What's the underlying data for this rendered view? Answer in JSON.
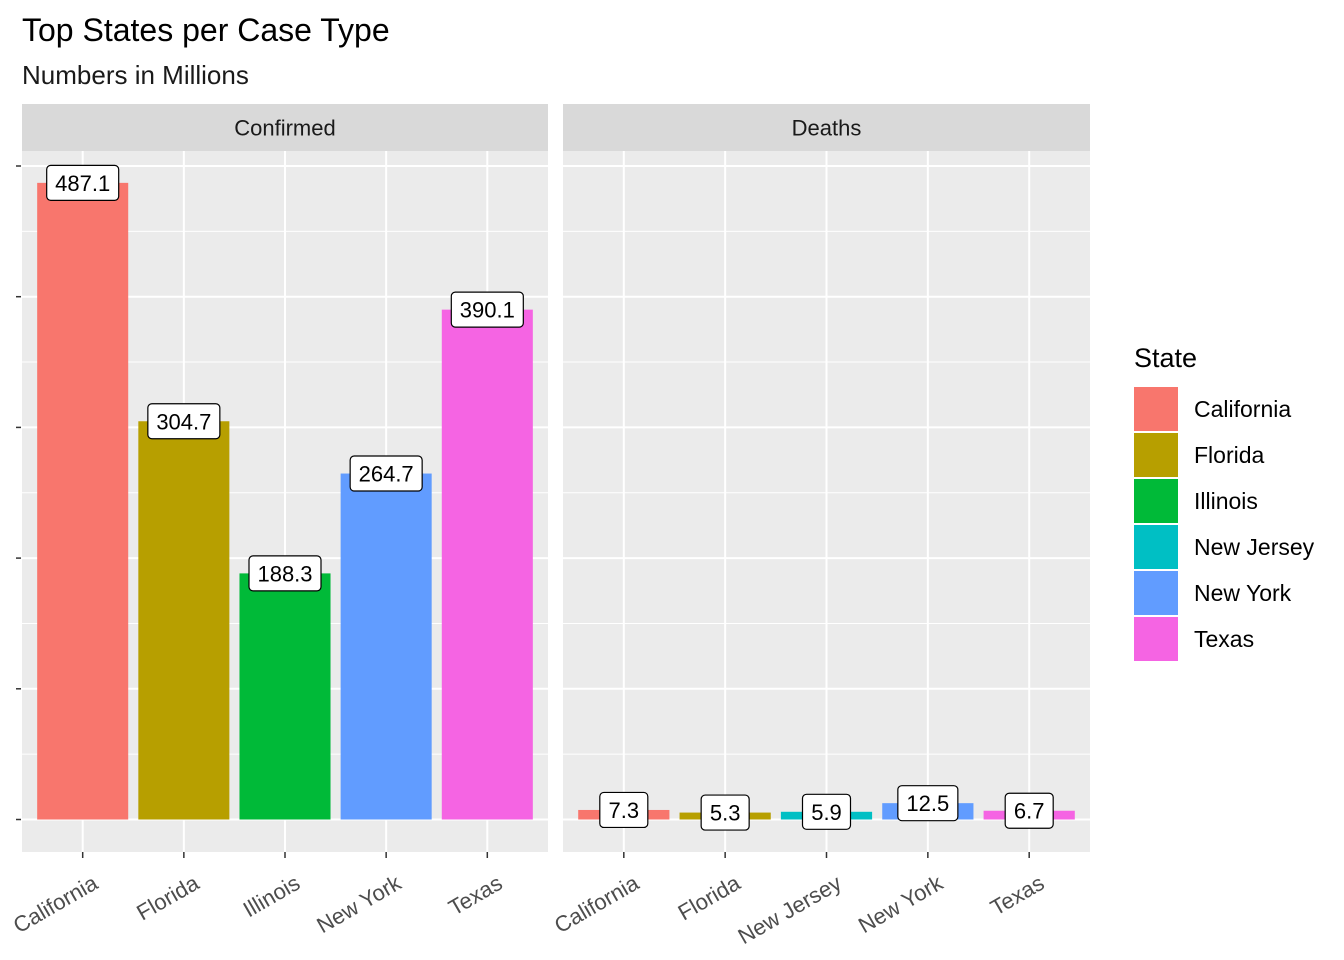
{
  "chart_data": {
    "type": "bar",
    "title": "Top States per Case Type",
    "subtitle": "Numbers in Millions",
    "xlabel": "",
    "ylabel": "",
    "ylim": [
      0,
      500
    ],
    "grid": true,
    "legend_position": "right",
    "legend": {
      "title": "State",
      "items": [
        {
          "name": "California",
          "color": "#F8766D"
        },
        {
          "name": "Florida",
          "color": "#B79F00"
        },
        {
          "name": "Illinois",
          "color": "#00BA38"
        },
        {
          "name": "New Jersey",
          "color": "#00BFC4"
        },
        {
          "name": "New York",
          "color": "#619CFF"
        },
        {
          "name": "Texas",
          "color": "#F564E3"
        }
      ]
    },
    "panels": [
      {
        "name": "Confirmed",
        "categories": [
          "California",
          "Florida",
          "Illinois",
          "New York",
          "Texas"
        ],
        "values": [
          487.1,
          304.7,
          188.3,
          264.7,
          390.1
        ],
        "labels": [
          "487.1",
          "304.7",
          "188.3",
          "264.7",
          "390.1"
        ]
      },
      {
        "name": "Deaths",
        "categories": [
          "California",
          "Florida",
          "New Jersey",
          "New York",
          "Texas"
        ],
        "values": [
          7.3,
          5.3,
          5.9,
          12.5,
          6.7
        ],
        "labels": [
          "7.3",
          "5.3",
          "5.9",
          "12.5",
          "6.7"
        ]
      }
    ]
  }
}
